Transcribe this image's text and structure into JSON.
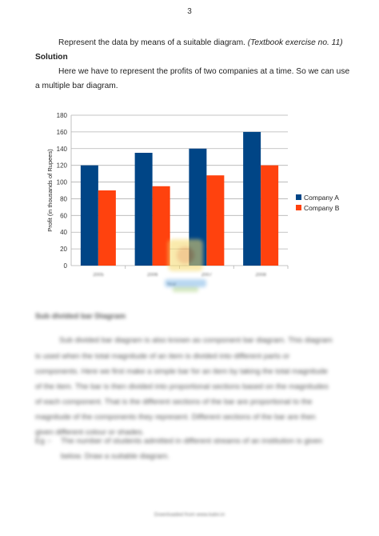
{
  "page_number": "3",
  "intro": {
    "text": "Represent the data by means of a suitable diagram. ",
    "ref": "(Textbook exercise no. 11)"
  },
  "solution_heading": "Solution",
  "solution_text": {
    "line1": "Here we have to represent the profits of two companies at a time. So we can use",
    "line2": "a multiple bar diagram."
  },
  "chart_data": {
    "type": "bar",
    "categories": [
      "2005",
      "2006",
      "2007",
      "2008"
    ],
    "series": [
      {
        "name": "Company A",
        "color": "#004586",
        "values": [
          120,
          135,
          140,
          160
        ]
      },
      {
        "name": "Company B",
        "color": "#ff420e",
        "values": [
          90,
          95,
          108,
          120
        ]
      }
    ],
    "ylabel": "Profit (in thousands of Rupees)",
    "xlabel": "Year",
    "ylim": [
      0,
      180
    ],
    "yticks": [
      0,
      20,
      40,
      60,
      80,
      100,
      120,
      140,
      160,
      180
    ],
    "grid": true,
    "legend": "right"
  },
  "blurred": {
    "heading": "Sub divided bar Diagram",
    "para": [
      "Sub divided bar diagram is also known as component bar diagram. This diagram",
      "is used when the total magnitude of an item is divided into different parts or",
      "components. Here we first make a simple bar for an item by taking the total magnitude",
      "of the item. The bar is then divided into proportional sections based on the magnitudes",
      "of each component. That is the different sections of the bar are proportional to the",
      "magnitude of the components they represent. Different sections of the bar are then",
      "given different colour or shades."
    ],
    "eg_label": "Eg :-",
    "eg_line1": "The number of students admitted in different streams of an institution is given",
    "eg_line2": "below. Draw a suitable diagram."
  },
  "footer": "Downloaded from www.kalvi.in"
}
